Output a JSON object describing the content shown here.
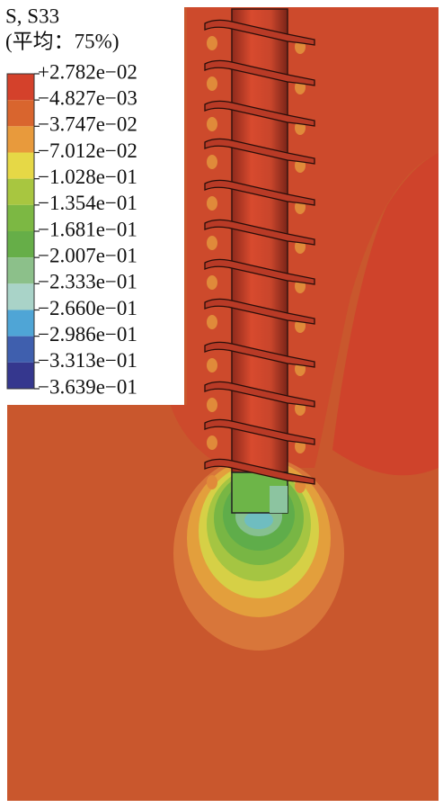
{
  "legend": {
    "title": "S, S33",
    "subtitle": "(平均：75%)",
    "labels": [
      "+2.782e−02",
      "−4.827e−03",
      "−3.747e−02",
      "−7.012e−02",
      "−1.028e−01",
      "−1.354e−01",
      "−1.681e−01",
      "−2.007e−01",
      "−2.333e−01",
      "−2.660e−01",
      "−2.986e−01",
      "−3.313e−01",
      "−3.639e−01"
    ],
    "colors": [
      "#d4412b",
      "#d9652e",
      "#e89a3c",
      "#e6d846",
      "#a8c640",
      "#7cb843",
      "#66ae48",
      "#8cc08a",
      "#a9d3c8",
      "#4fa5d6",
      "#3f5fae",
      "#35378e"
    ]
  }
}
